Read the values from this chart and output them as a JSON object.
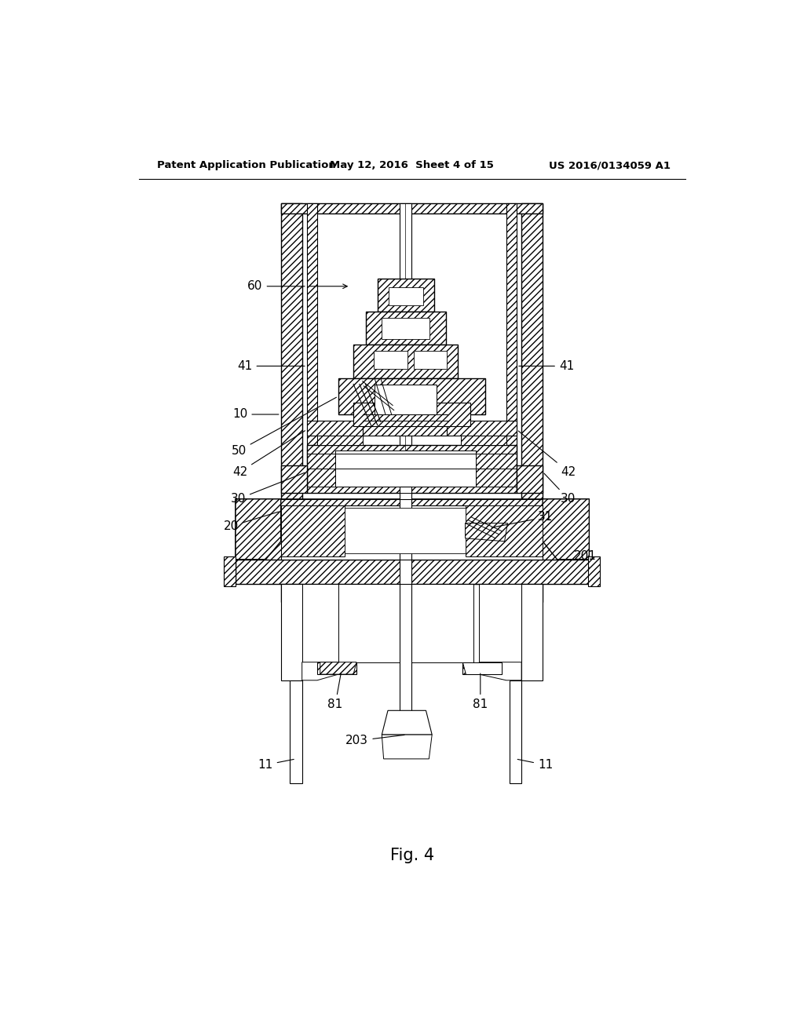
{
  "title": "Fig. 4",
  "header_left": "Patent Application Publication",
  "header_center": "May 12, 2016  Sheet 4 of 15",
  "header_right": "US 2016/0134059 A1",
  "bg_color": "#ffffff",
  "line_color": "#000000"
}
